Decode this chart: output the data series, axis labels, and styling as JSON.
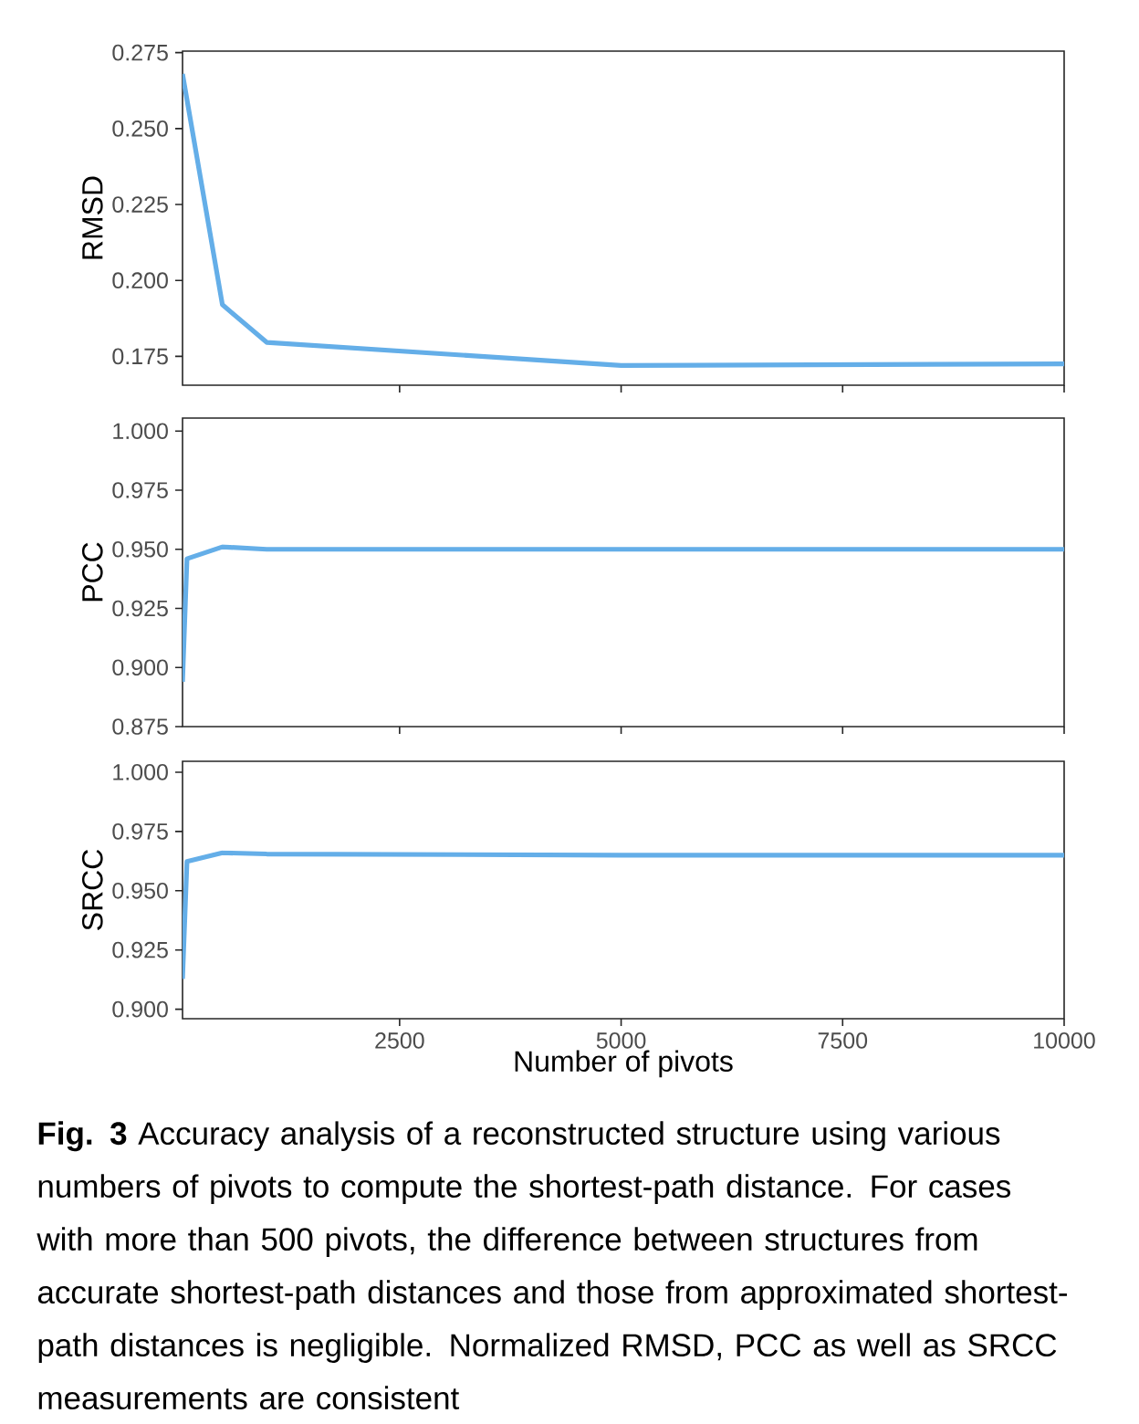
{
  "chart_data": [
    {
      "type": "line",
      "ylabel": "RMSD",
      "x": [
        50,
        500,
        1000,
        5000,
        10000
      ],
      "values": [
        0.268,
        0.192,
        0.1796,
        0.172,
        0.1725
      ],
      "color": "#64aee8",
      "xlim": [
        50,
        10000
      ],
      "xticks": [
        2500,
        5000,
        7500,
        10000
      ],
      "ylim": [
        0.1655,
        0.2755
      ],
      "yticks": [
        {
          "value": 0.175,
          "label": "0.175"
        },
        {
          "value": 0.2,
          "label": "0.200"
        },
        {
          "value": 0.225,
          "label": "0.225"
        },
        {
          "value": 0.25,
          "label": "0.250"
        },
        {
          "value": 0.275,
          "label": "0.275"
        }
      ],
      "tick_labels": "y"
    },
    {
      "type": "line",
      "ylabel": "PCC",
      "x": [
        50,
        100,
        500,
        1000,
        5000,
        10000
      ],
      "values": [
        0.894,
        0.946,
        0.951,
        0.95,
        0.95,
        0.95
      ],
      "color": "#64aee8",
      "xlim": [
        50,
        10000
      ],
      "xticks": [
        2500,
        5000,
        7500,
        10000
      ],
      "ylim": [
        0.875,
        1.0055
      ],
      "yticks": [
        {
          "value": 0.875,
          "label": "0.875"
        },
        {
          "value": 0.9,
          "label": "0.900"
        },
        {
          "value": 0.925,
          "label": "0.925"
        },
        {
          "value": 0.95,
          "label": "0.950"
        },
        {
          "value": 0.975,
          "label": "0.975"
        },
        {
          "value": 1,
          "label": "1.000"
        }
      ],
      "tick_labels": "y"
    },
    {
      "type": "line",
      "ylabel": "SRCC",
      "xlabel": "Number of pivots",
      "x": [
        50,
        100,
        500,
        1000,
        5000,
        10000
      ],
      "values": [
        0.9128,
        0.9623,
        0.966,
        0.9655,
        0.965,
        0.965
      ],
      "color": "#64aee8",
      "xlim": [
        50,
        10000
      ],
      "xticks": [
        2500,
        5000,
        7500,
        10000
      ],
      "ylim": [
        0.896,
        1.0046
      ],
      "yticks": [
        {
          "value": 0.9,
          "label": "0.900"
        },
        {
          "value": 0.925,
          "label": "0.925"
        },
        {
          "value": 0.95,
          "label": "0.950"
        },
        {
          "value": 0.975,
          "label": "0.975"
        },
        {
          "value": 1,
          "label": "1.000"
        }
      ],
      "annotations": [
        "**Fig. 3** Accuracy analysis of a reconstructed structure using various numbers of pivots to compute the shortest-path distance. For cases with more than 500 pivots, the difference between structures from accurate shortest-path distances and those from approximated shortest-path distances is negligible. Normalized RMSD, PCC as well as SRCC measurements are consistent"
      ]
    }
  ]
}
